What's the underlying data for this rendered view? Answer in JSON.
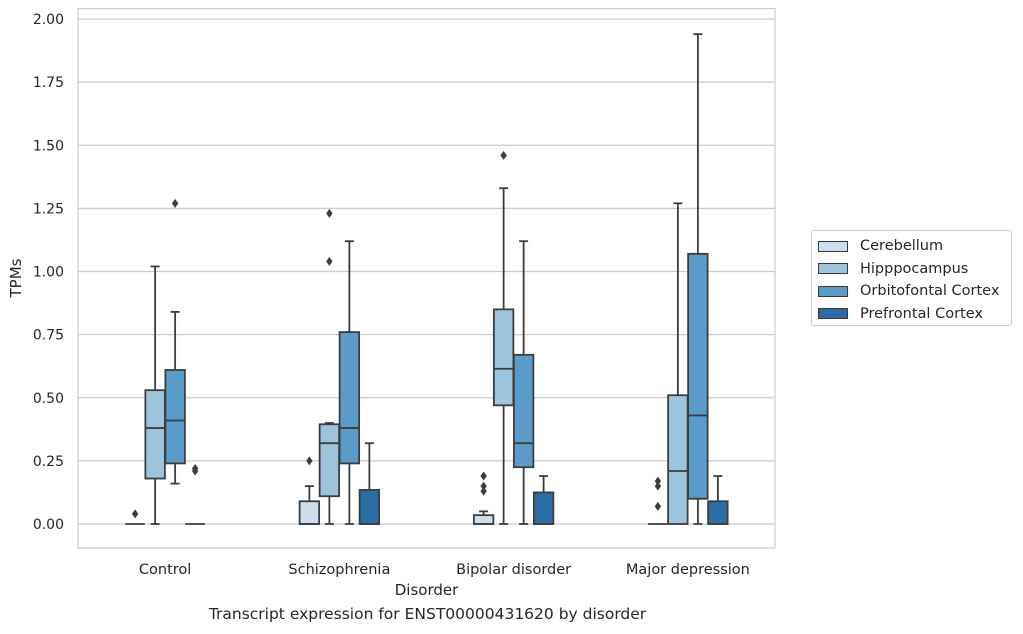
{
  "chart_data": {
    "type": "box",
    "xlabel": "Disorder",
    "ylabel": "TPMs",
    "caption": "Transcript expression for ENST00000431620 by disorder",
    "ylim": [
      -0.1,
      2.02
    ],
    "yticks": [
      0.0,
      0.25,
      0.5,
      0.75,
      1.0,
      1.25,
      1.5,
      1.75,
      2.0
    ],
    "ytick_labels": [
      "0.00",
      "0.25",
      "0.50",
      "0.75",
      "1.00",
      "1.25",
      "1.50",
      "1.75",
      "2.00"
    ],
    "grid": "horizontal",
    "legend_position": "right",
    "categories": [
      "Control",
      "Schizophrenia",
      "Bipolar disorder",
      "Major depression"
    ],
    "series": [
      {
        "name": "Cerebellum",
        "color": "#cddfef",
        "boxes": [
          {
            "min": 0.0,
            "q1": 0.0,
            "median": 0.0,
            "q3": 0.0,
            "max": 0.0,
            "outliers": [
              0.04
            ]
          },
          {
            "min": 0.0,
            "q1": 0.0,
            "median": 0.0,
            "q3": 0.09,
            "max": 0.15,
            "outliers": [
              0.25
            ]
          },
          {
            "min": 0.0,
            "q1": 0.0,
            "median": 0.0,
            "q3": 0.035,
            "max": 0.05,
            "outliers": [
              0.13,
              0.15,
              0.19
            ]
          },
          {
            "min": 0.0,
            "q1": 0.0,
            "median": 0.0,
            "q3": 0.0,
            "max": 0.0,
            "outliers": [
              0.07,
              0.15,
              0.17
            ]
          }
        ]
      },
      {
        "name": "Hipppocampus",
        "color": "#9cc5dd",
        "boxes": [
          {
            "min": 0.0,
            "q1": 0.18,
            "median": 0.38,
            "q3": 0.53,
            "max": 1.02,
            "outliers": []
          },
          {
            "min": 0.0,
            "q1": 0.11,
            "median": 0.32,
            "q3": 0.395,
            "max": 0.4,
            "outliers": [
              1.04,
              1.23
            ]
          },
          {
            "min": 0.0,
            "q1": 0.47,
            "median": 0.615,
            "q3": 0.85,
            "max": 1.33,
            "outliers": [
              1.46
            ]
          },
          {
            "min": 0.0,
            "q1": 0.0,
            "median": 0.21,
            "q3": 0.51,
            "max": 1.27,
            "outliers": []
          }
        ]
      },
      {
        "name": "Orbitofontal Cortex",
        "color": "#5a9bc9",
        "boxes": [
          {
            "min": 0.16,
            "q1": 0.24,
            "median": 0.41,
            "q3": 0.61,
            "max": 0.84,
            "outliers": [
              1.27
            ]
          },
          {
            "min": 0.0,
            "q1": 0.24,
            "median": 0.38,
            "q3": 0.76,
            "max": 1.12,
            "outliers": []
          },
          {
            "min": 0.0,
            "q1": 0.225,
            "median": 0.32,
            "q3": 0.67,
            "max": 1.12,
            "outliers": []
          },
          {
            "min": 0.0,
            "q1": 0.1,
            "median": 0.43,
            "q3": 1.07,
            "max": 1.94,
            "outliers": []
          }
        ]
      },
      {
        "name": "Prefrontal Cortex",
        "color": "#2b6ca6",
        "boxes": [
          {
            "min": 0.0,
            "q1": 0.0,
            "median": 0.0,
            "q3": 0.0,
            "max": 0.0,
            "outliers": [
              0.21,
              0.22
            ]
          },
          {
            "min": 0.0,
            "q1": 0.0,
            "median": 0.0,
            "q3": 0.135,
            "max": 0.32,
            "outliers": []
          },
          {
            "min": 0.0,
            "q1": 0.0,
            "median": 0.0,
            "q3": 0.125,
            "max": 0.19,
            "outliers": []
          },
          {
            "min": 0.0,
            "q1": 0.0,
            "median": 0.0,
            "q3": 0.09,
            "max": 0.19,
            "outliers": []
          }
        ]
      }
    ]
  }
}
